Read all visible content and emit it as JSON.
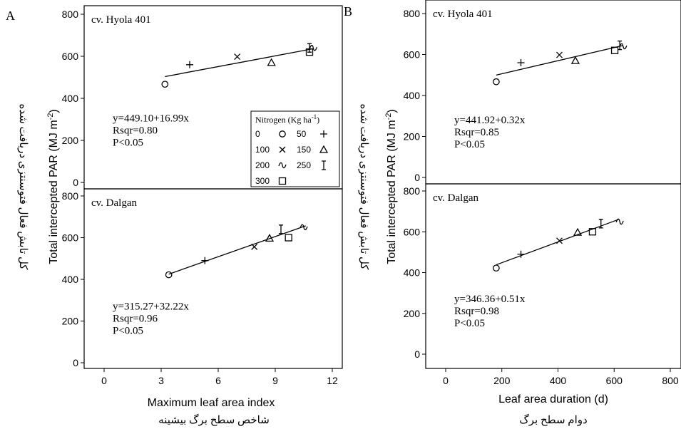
{
  "chart_data": [
    {
      "type": "scatter",
      "panel_letter": "A",
      "xlabel": "Maximum leaf area index",
      "xlabel_fa": "شاخص سطح برگ بیشینه",
      "ylabel": "Total intercepted PAR (MJ m-2)",
      "ylabel_fa": "کل تابش فعال فتوسنتزی دریافت شده",
      "xlim": [
        0,
        12
      ],
      "xticks": [
        "0",
        "3",
        "6",
        "9",
        "12"
      ],
      "legend": {
        "title": "Nitrogen (Kg ha-1)",
        "position": "top-right of top subpanel",
        "entries": [
          {
            "label": "0",
            "marker": "circle"
          },
          {
            "label": "50",
            "marker": "plus"
          },
          {
            "label": "100",
            "marker": "cross"
          },
          {
            "label": "150",
            "marker": "triangle"
          },
          {
            "label": "200",
            "marker": "tilde"
          },
          {
            "label": "250",
            "marker": "ibeam"
          },
          {
            "label": "300",
            "marker": "square"
          }
        ]
      },
      "subpanels": [
        {
          "cultivar": "cv. Hyola 401",
          "ylim": [
            0,
            800
          ],
          "yticks": [
            "0",
            "200",
            "400",
            "600",
            "800"
          ],
          "equation": "y=449.10+16.99x",
          "rsqr": "Rsqr=0.80",
          "p": "P<0.05",
          "fit": {
            "intercept": 449.1,
            "slope": 16.99,
            "x_range": [
              3.2,
              11.0
            ]
          },
          "points": [
            {
              "n": "0",
              "marker": "circle",
              "x": 3.2,
              "y": 467
            },
            {
              "n": "50",
              "marker": "plus",
              "x": 4.5,
              "y": 560
            },
            {
              "n": "100",
              "marker": "cross",
              "x": 7.0,
              "y": 598
            },
            {
              "n": "150",
              "marker": "triangle",
              "x": 8.8,
              "y": 570
            },
            {
              "n": "200",
              "marker": "tilde",
              "x": 11.0,
              "y": 640
            },
            {
              "n": "250",
              "marker": "ibeam",
              "x": 10.8,
              "y": 640
            },
            {
              "n": "300",
              "marker": "square",
              "x": 10.8,
              "y": 620
            }
          ]
        },
        {
          "cultivar": "cv. Dalgan",
          "ylim": [
            0,
            800
          ],
          "yticks": [
            "0",
            "200",
            "400",
            "600",
            "800"
          ],
          "equation": "y=315.27+32.22x",
          "rsqr": "Rsqr=0.96",
          "p": "P<0.05",
          "fit": {
            "intercept": 315.27,
            "slope": 32.22,
            "x_range": [
              3.4,
              10.6
            ]
          },
          "points": [
            {
              "n": "0",
              "marker": "circle",
              "x": 3.4,
              "y": 422
            },
            {
              "n": "50",
              "marker": "plus",
              "x": 5.3,
              "y": 490
            },
            {
              "n": "100",
              "marker": "cross",
              "x": 7.9,
              "y": 556
            },
            {
              "n": "150",
              "marker": "triangle",
              "x": 8.7,
              "y": 597
            },
            {
              "n": "200",
              "marker": "tilde",
              "x": 10.5,
              "y": 650
            },
            {
              "n": "250",
              "marker": "ibeam",
              "x": 9.3,
              "y": 640
            },
            {
              "n": "300",
              "marker": "square",
              "x": 9.7,
              "y": 600
            }
          ]
        }
      ]
    },
    {
      "type": "scatter",
      "panel_letter": "B",
      "xlabel": "Leaf area duration (d)",
      "xlabel_fa": "دوام سطح برگ",
      "ylabel": "Total intercepted PAR (MJ m-2)",
      "ylabel_fa": "کل تابش فعال فتوسنتزی دریافت شده",
      "xlim": [
        0,
        800
      ],
      "xticks": [
        "0",
        "200",
        "400",
        "600",
        "800"
      ],
      "subpanels": [
        {
          "cultivar": "cv. Hyola 401",
          "ylim": [
            0,
            800
          ],
          "yticks": [
            "0",
            "200",
            "400",
            "600",
            "800"
          ],
          "equation": "y=441.92+0.32x",
          "rsqr": "Rsqr=0.85",
          "p": "P<0.05",
          "fit": {
            "intercept": 441.92,
            "slope": 0.32,
            "x_range": [
              180,
              630
            ]
          },
          "points": [
            {
              "n": "0",
              "marker": "circle",
              "x": 180,
              "y": 467
            },
            {
              "n": "50",
              "marker": "plus",
              "x": 268,
              "y": 560
            },
            {
              "n": "100",
              "marker": "cross",
              "x": 405,
              "y": 598
            },
            {
              "n": "150",
              "marker": "triangle",
              "x": 462,
              "y": 570
            },
            {
              "n": "200",
              "marker": "tilde",
              "x": 632,
              "y": 640
            },
            {
              "n": "250",
              "marker": "ibeam",
              "x": 620,
              "y": 645
            },
            {
              "n": "300",
              "marker": "square",
              "x": 602,
              "y": 620
            }
          ]
        },
        {
          "cultivar": "cv. Dalgan",
          "ylim": [
            0,
            800
          ],
          "yticks": [
            "0",
            "200",
            "400",
            "600",
            "800"
          ],
          "equation": "y=346.36+0.51x",
          "rsqr": "Rsqr=0.98",
          "p": "P<0.05",
          "fit": {
            "intercept": 346.36,
            "slope": 0.51,
            "x_range": [
              180,
              615
            ]
          },
          "points": [
            {
              "n": "0",
              "marker": "circle",
              "x": 180,
              "y": 422
            },
            {
              "n": "50",
              "marker": "plus",
              "x": 268,
              "y": 490
            },
            {
              "n": "100",
              "marker": "cross",
              "x": 405,
              "y": 556
            },
            {
              "n": "150",
              "marker": "triangle",
              "x": 470,
              "y": 597
            },
            {
              "n": "200",
              "marker": "tilde",
              "x": 620,
              "y": 650
            },
            {
              "n": "250",
              "marker": "ibeam",
              "x": 553,
              "y": 640
            },
            {
              "n": "300",
              "marker": "square",
              "x": 523,
              "y": 600
            }
          ]
        }
      ]
    }
  ]
}
